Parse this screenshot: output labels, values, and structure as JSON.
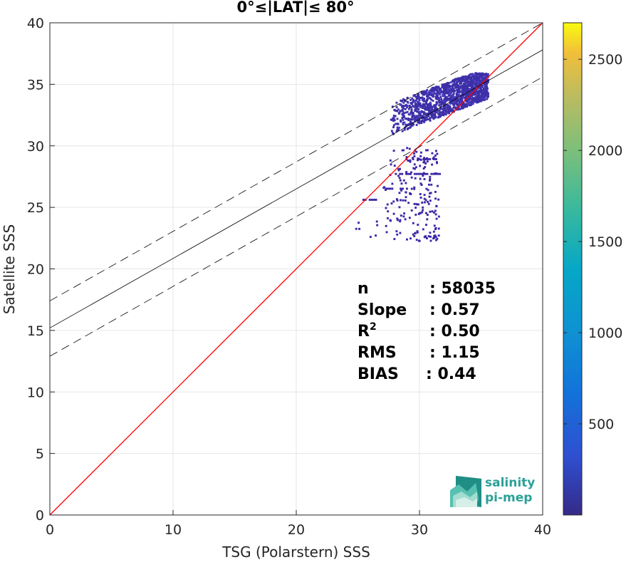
{
  "chart_data": {
    "type": "scatter",
    "title": "0°≤|LAT|≤ 80°",
    "xlabel": "TSG (Polarstern) SSS",
    "ylabel": "Satellite SSS",
    "xlim": [
      0,
      40
    ],
    "ylim": [
      0,
      40
    ],
    "x_ticks": [
      0,
      10,
      20,
      30,
      40
    ],
    "y_ticks": [
      0,
      5,
      10,
      15,
      20,
      25,
      30,
      35,
      40
    ],
    "grid": true,
    "colorbar": {
      "range": [
        0,
        2700
      ],
      "ticks": [
        500,
        1000,
        1500,
        2000,
        2500
      ],
      "colormap": "parula"
    },
    "lines": [
      {
        "role": "identity",
        "color": "#ff0000",
        "style": "solid",
        "points": [
          [
            0,
            0
          ],
          [
            40,
            40
          ]
        ]
      },
      {
        "role": "regression",
        "color": "#000000",
        "style": "solid",
        "points": [
          [
            0,
            15.2
          ],
          [
            40,
            37.8
          ]
        ]
      },
      {
        "role": "regression_plus_2sigma",
        "color": "#000000",
        "style": "dashed",
        "points": [
          [
            0,
            17.4
          ],
          [
            40,
            40.0
          ]
        ]
      },
      {
        "role": "regression_minus_2sigma",
        "color": "#000000",
        "style": "dashed",
        "points": [
          [
            0,
            12.9
          ],
          [
            40,
            35.6
          ]
        ]
      }
    ],
    "density_clusters": [
      {
        "name": "main",
        "x_range": [
          27.5,
          35.5
        ],
        "y_range": [
          31.0,
          36.0
        ],
        "approx_count_color": "#3d2fa8"
      },
      {
        "name": "low",
        "x_range": [
          20.3,
          31.5
        ],
        "y_range": [
          22.3,
          30.0
        ],
        "approx_count_color": "#3e26a8"
      }
    ],
    "stats": [
      {
        "label": "n",
        "value": ": 58035"
      },
      {
        "label": "Slope",
        "value": ": 0.57"
      },
      {
        "label": "R",
        "sup": "2",
        "value": ": 0.50"
      },
      {
        "label": "RMS",
        "value": ": 1.15"
      },
      {
        "label": "BIAS",
        "value": ": 0.44"
      }
    ]
  },
  "logo": {
    "line1": "salinity",
    "line2": "pi-mep",
    "color": "#2aa198"
  }
}
